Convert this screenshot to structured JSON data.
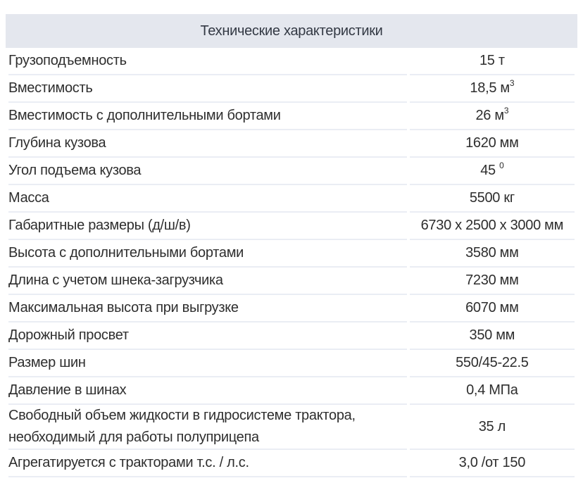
{
  "colors": {
    "header_bg": "#e4e7ee",
    "divider": "#eaedf4",
    "text": "#2e2e2e",
    "header_text": "#333944"
  },
  "table": {
    "title": "Технические характеристики",
    "rows": [
      {
        "label": "Грузоподъемность",
        "value": "15 т",
        "sup": ""
      },
      {
        "label": "Вместимость",
        "value": "18,5 м",
        "sup": "3"
      },
      {
        "label": "Вместимость с дополнительными бортами",
        "value": "26 м",
        "sup": "3"
      },
      {
        "label": "Глубина кузова",
        "value": "1620 мм",
        "sup": ""
      },
      {
        "label": "Угол подъема кузова",
        "value": "45 ",
        "sup": "0"
      },
      {
        "label": "Масса",
        "value": "5500 кг",
        "sup": ""
      },
      {
        "label": "Габаритные размеры (д/ш/в)",
        "value": "6730 х 2500 х 3000 мм",
        "sup": ""
      },
      {
        "label": "Высота с дополнительными бортами",
        "value": "3580 мм",
        "sup": ""
      },
      {
        "label": "Длина с учетом шнека-загрузчика",
        "value": "7230 мм",
        "sup": ""
      },
      {
        "label": "Максимальная высота при выгрузке",
        "value": "6070 мм",
        "sup": ""
      },
      {
        "label": "Дорожный просвет",
        "value": "350 мм",
        "sup": ""
      },
      {
        "label": "Размер шин",
        "value": "550/45-22.5",
        "sup": ""
      },
      {
        "label": "Давление в шинах",
        "value": "0,4 МПа",
        "sup": ""
      },
      {
        "label": "Свободный объем жидкости в гидросистеме трактора, необходимый для работы полуприцепа",
        "value": "35 л",
        "sup": ""
      },
      {
        "label": "Агрегатируется с тракторами т.с. / л.с.",
        "value": "3,0 /от 150",
        "sup": ""
      }
    ]
  }
}
